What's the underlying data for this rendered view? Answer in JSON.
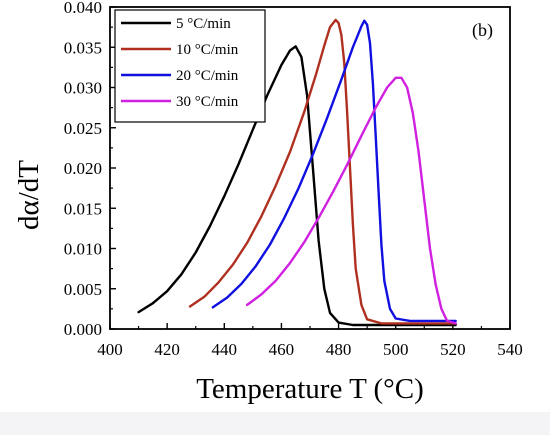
{
  "chart_data": {
    "type": "line",
    "panel_label": "(b)",
    "xlabel": "Temperature T (°C)",
    "ylabel": "dα/dT",
    "xlim": [
      400,
      540
    ],
    "ylim": [
      0,
      0.04
    ],
    "x_ticks": [
      "400",
      "420",
      "440",
      "460",
      "480",
      "500",
      "520",
      "540"
    ],
    "y_ticks": [
      "0.000",
      "0.005",
      "0.010",
      "0.015",
      "0.020",
      "0.025",
      "0.030",
      "0.035",
      "0.040"
    ],
    "legend_position": "top-left",
    "grid": false,
    "series": [
      {
        "name": "5 °C/min",
        "color": "#000000",
        "points": [
          [
            410,
            0.0021
          ],
          [
            415,
            0.0032
          ],
          [
            420,
            0.0047
          ],
          [
            425,
            0.0068
          ],
          [
            430,
            0.0095
          ],
          [
            435,
            0.0128
          ],
          [
            440,
            0.0165
          ],
          [
            445,
            0.0205
          ],
          [
            450,
            0.0248
          ],
          [
            455,
            0.029
          ],
          [
            460,
            0.0328
          ],
          [
            463,
            0.0346
          ],
          [
            465,
            0.0351
          ],
          [
            467,
            0.0338
          ],
          [
            469,
            0.029
          ],
          [
            471,
            0.02
          ],
          [
            473,
            0.011
          ],
          [
            475,
            0.005
          ],
          [
            477,
            0.002
          ],
          [
            480,
            0.0008
          ],
          [
            485,
            0.0005
          ],
          [
            495,
            0.0005
          ],
          [
            505,
            0.0005
          ],
          [
            521,
            0.0005
          ]
        ]
      },
      {
        "name": "10 °C/min",
        "color": "#b03020",
        "points": [
          [
            428,
            0.0028
          ],
          [
            433,
            0.004
          ],
          [
            438,
            0.0058
          ],
          [
            443,
            0.008
          ],
          [
            448,
            0.0107
          ],
          [
            453,
            0.014
          ],
          [
            458,
            0.0178
          ],
          [
            463,
            0.022
          ],
          [
            468,
            0.027
          ],
          [
            472,
            0.0315
          ],
          [
            475,
            0.0352
          ],
          [
            477,
            0.0375
          ],
          [
            479,
            0.0384
          ],
          [
            480,
            0.038
          ],
          [
            481,
            0.0365
          ],
          [
            482,
            0.033
          ],
          [
            483,
            0.027
          ],
          [
            484,
            0.02
          ],
          [
            485,
            0.013
          ],
          [
            486,
            0.0075
          ],
          [
            488,
            0.003
          ],
          [
            490,
            0.0012
          ],
          [
            495,
            0.0007
          ],
          [
            505,
            0.0007
          ],
          [
            521,
            0.0007
          ]
        ]
      },
      {
        "name": "20 °C/min",
        "color": "#1010e0",
        "points": [
          [
            436,
            0.0027
          ],
          [
            441,
            0.0039
          ],
          [
            446,
            0.0056
          ],
          [
            451,
            0.0078
          ],
          [
            456,
            0.0105
          ],
          [
            461,
            0.0138
          ],
          [
            466,
            0.0175
          ],
          [
            471,
            0.0217
          ],
          [
            476,
            0.0262
          ],
          [
            481,
            0.031
          ],
          [
            485,
            0.035
          ],
          [
            488,
            0.0376
          ],
          [
            489,
            0.0383
          ],
          [
            490,
            0.0378
          ],
          [
            491,
            0.0355
          ],
          [
            492,
            0.0305
          ],
          [
            493,
            0.024
          ],
          [
            494,
            0.017
          ],
          [
            495,
            0.0105
          ],
          [
            496,
            0.006
          ],
          [
            498,
            0.0025
          ],
          [
            500,
            0.0013
          ],
          [
            505,
            0.001
          ],
          [
            515,
            0.001
          ],
          [
            521,
            0.001
          ]
        ]
      },
      {
        "name": "30 °C/min",
        "color": "#d020e0",
        "points": [
          [
            448,
            0.003
          ],
          [
            453,
            0.0043
          ],
          [
            458,
            0.006
          ],
          [
            463,
            0.0082
          ],
          [
            468,
            0.0108
          ],
          [
            473,
            0.0138
          ],
          [
            478,
            0.017
          ],
          [
            483,
            0.0204
          ],
          [
            488,
            0.024
          ],
          [
            493,
            0.0275
          ],
          [
            497,
            0.03
          ],
          [
            500,
            0.0312
          ],
          [
            502,
            0.0312
          ],
          [
            504,
            0.03
          ],
          [
            506,
            0.0268
          ],
          [
            508,
            0.022
          ],
          [
            510,
            0.016
          ],
          [
            512,
            0.01
          ],
          [
            514,
            0.0055
          ],
          [
            516,
            0.0025
          ],
          [
            518,
            0.001
          ],
          [
            521,
            0.0007
          ]
        ]
      }
    ]
  }
}
